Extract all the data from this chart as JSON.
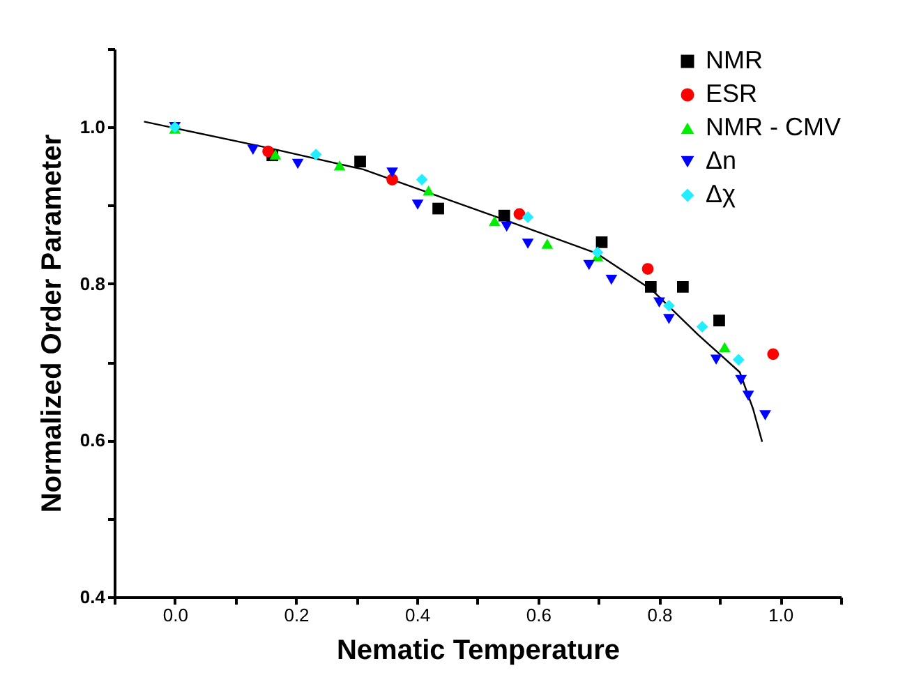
{
  "chart_data": {
    "type": "scatter",
    "xlabel": "Nematic Temperature",
    "ylabel": "Normalized Order Parameter",
    "xlim": [
      -0.1,
      1.1
    ],
    "ylim": [
      0.4,
      1.1
    ],
    "xticks": [
      {
        "value": -0.1,
        "label": null
      },
      {
        "value": 0.0,
        "label": "0.0"
      },
      {
        "value": 0.1,
        "label": null
      },
      {
        "value": 0.2,
        "label": "0.2"
      },
      {
        "value": 0.3,
        "label": null
      },
      {
        "value": 0.4,
        "label": "0.4"
      },
      {
        "value": 0.5,
        "label": null
      },
      {
        "value": 0.6,
        "label": "0.6"
      },
      {
        "value": 0.7,
        "label": null
      },
      {
        "value": 0.8,
        "label": "0.8"
      },
      {
        "value": 0.9,
        "label": null
      },
      {
        "value": 1.0,
        "label": "1.0"
      },
      {
        "value": 1.1,
        "label": null
      }
    ],
    "yticks": [
      {
        "value": 0.4,
        "label": "0.4"
      },
      {
        "value": 0.5,
        "label": null
      },
      {
        "value": 0.6,
        "label": "0.6"
      },
      {
        "value": 0.7,
        "label": null
      },
      {
        "value": 0.8,
        "label": "0.8"
      },
      {
        "value": 0.9,
        "label": null
      },
      {
        "value": 1.0,
        "label": "1.0"
      },
      {
        "value": 1.1,
        "label": null
      }
    ],
    "grid": false,
    "legend": "top right",
    "series": [
      {
        "name": "NMR",
        "color": "#000000",
        "marker": "square",
        "x": [
          0.161,
          0.306,
          0.435,
          0.544,
          0.705,
          0.786,
          0.839,
          0.899
        ],
        "values": [
          0.964,
          0.956,
          0.896,
          0.887,
          0.853,
          0.796,
          0.796,
          0.753
        ]
      },
      {
        "name": "ESR",
        "color": "#ff0000",
        "marker": "circle",
        "x": [
          0.154,
          0.359,
          0.569,
          0.781,
          0.988
        ],
        "values": [
          0.969,
          0.933,
          0.889,
          0.819,
          0.71
        ]
      },
      {
        "name": "NMR - CMV",
        "color": "#00ee00",
        "marker": "triangle",
        "x": [
          0.0,
          0.166,
          0.272,
          0.419,
          0.528,
          0.615,
          0.698,
          0.908
        ],
        "values": [
          0.998,
          0.965,
          0.951,
          0.919,
          0.88,
          0.851,
          0.835,
          0.719
        ]
      },
      {
        "name": "Δn",
        "color": "#0000ff",
        "marker": "triangle-down",
        "x": [
          0.0,
          0.129,
          0.203,
          0.359,
          0.401,
          0.548,
          0.583,
          0.684,
          0.721,
          0.8,
          0.816,
          0.894,
          0.935,
          0.947,
          0.975
        ],
        "values": [
          1.0,
          0.971,
          0.953,
          0.942,
          0.901,
          0.873,
          0.851,
          0.824,
          0.805,
          0.776,
          0.755,
          0.703,
          0.677,
          0.657,
          0.632
        ]
      },
      {
        "name": "Δχ",
        "color": "#22eeff",
        "marker": "diamond",
        "x": [
          0.0,
          0.233,
          0.408,
          0.583,
          0.698,
          0.816,
          0.871,
          0.931
        ],
        "values": [
          1.0,
          0.965,
          0.933,
          0.885,
          0.84,
          0.772,
          0.745,
          0.703
        ]
      },
      {
        "type": "line",
        "color": "#000000",
        "line_style": "solid",
        "x": [
          -0.051,
          0.157,
          0.311,
          0.525,
          0.696,
          0.788,
          0.864,
          0.933,
          0.955,
          0.97
        ],
        "values": [
          1.007,
          0.973,
          0.946,
          0.887,
          0.839,
          0.792,
          0.735,
          0.687,
          0.64,
          0.598
        ]
      }
    ]
  }
}
